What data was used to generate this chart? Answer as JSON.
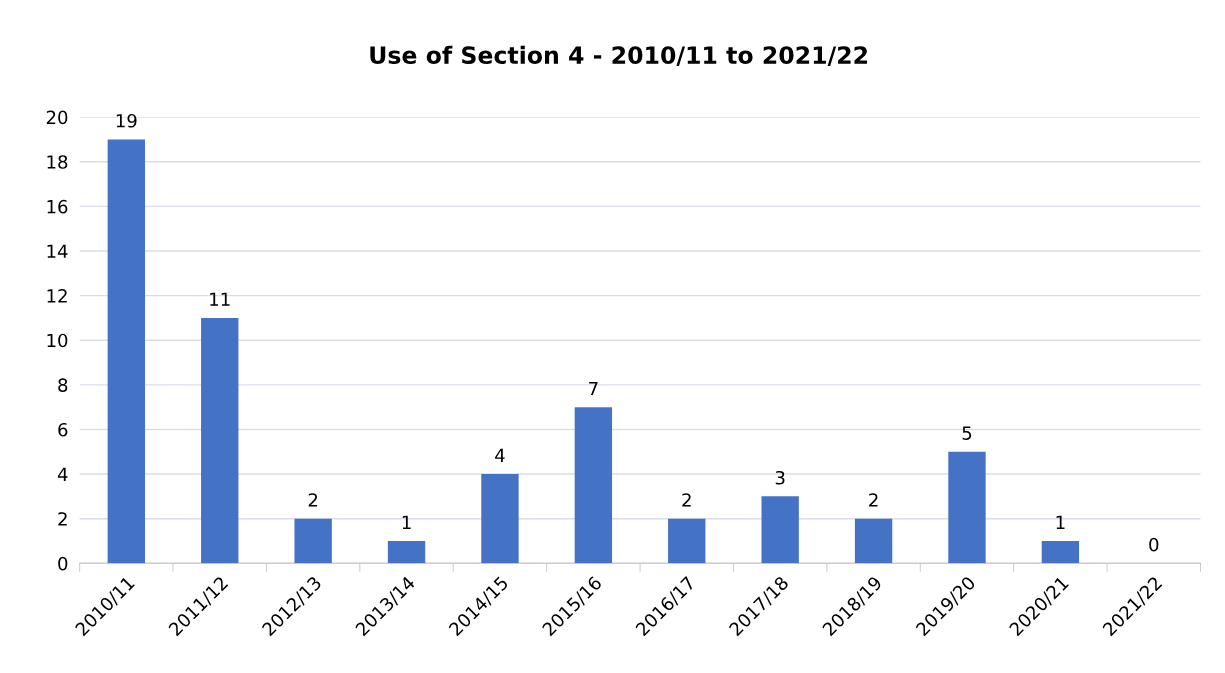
{
  "chart_data": {
    "type": "bar",
    "title": "Use of Section 4 - 2010/11 to 2021/22",
    "categories": [
      "2010/11",
      "2011/12",
      "2012/13",
      "2013/14",
      "2014/15",
      "2015/16",
      "2016/17",
      "2017/18",
      "2018/19",
      "2019/20",
      "2020/21",
      "2021/22"
    ],
    "values": [
      19,
      11,
      2,
      1,
      4,
      7,
      2,
      3,
      2,
      5,
      1,
      0
    ],
    "color": "#4472c4",
    "ylim": [
      0,
      20
    ],
    "yticks": [
      0,
      2,
      4,
      6,
      8,
      10,
      12,
      14,
      16,
      18,
      20
    ],
    "grid": "y",
    "data_labels": true
  }
}
